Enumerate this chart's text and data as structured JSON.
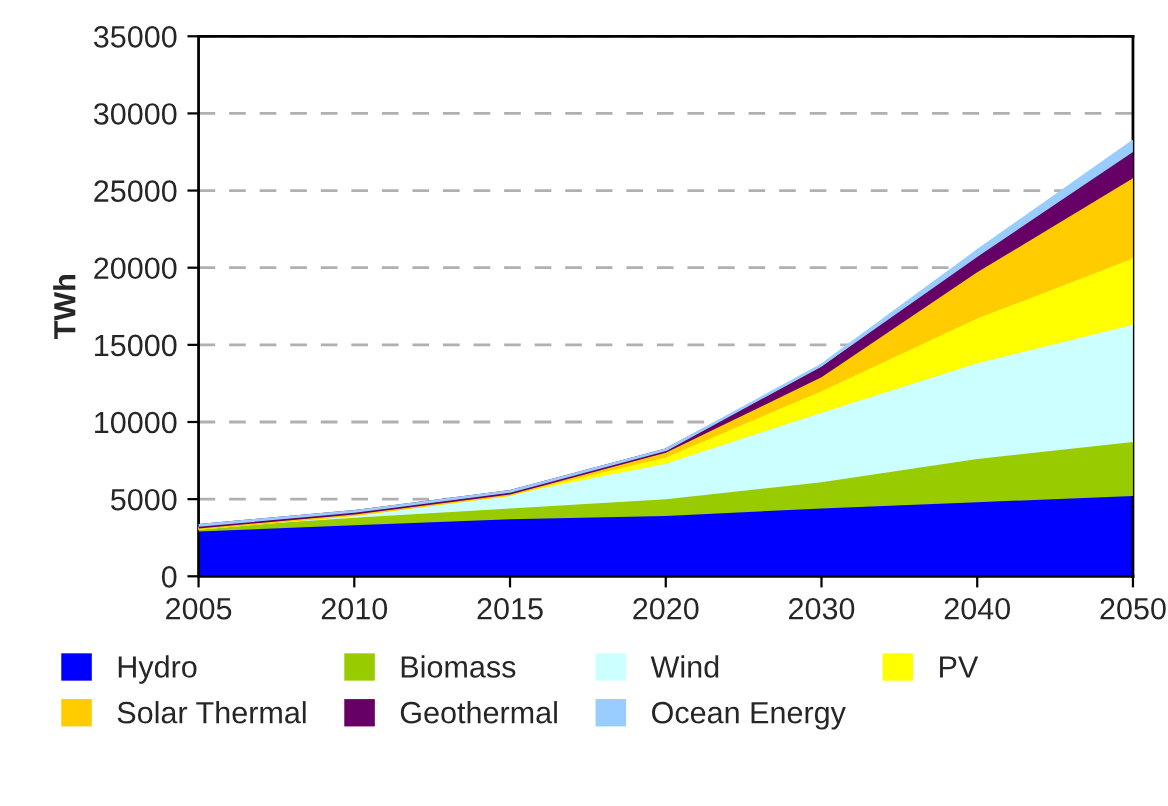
{
  "chart_data": {
    "type": "area",
    "stacked": true,
    "ylabel": "TWh",
    "categories": [
      "2005",
      "2010",
      "2015",
      "2020",
      "2030",
      "2040",
      "2050"
    ],
    "series": [
      {
        "name": "Hydro",
        "color": "#0000ff",
        "values": [
          2900,
          3300,
          3700,
          3900,
          4400,
          4800,
          5200
        ]
      },
      {
        "name": "Biomass",
        "color": "#99cc00",
        "values": [
          200,
          500,
          700,
          1100,
          1700,
          2800,
          3500
        ]
      },
      {
        "name": "Wind",
        "color": "#ccffff",
        "values": [
          0,
          200,
          900,
          2300,
          4500,
          6200,
          7600
        ]
      },
      {
        "name": "PV",
        "color": "#ffff00",
        "values": [
          0,
          0,
          0,
          400,
          1400,
          2900,
          4300
        ]
      },
      {
        "name": "Solar Thermal",
        "color": "#ffcc00",
        "values": [
          0,
          0,
          0,
          300,
          900,
          3000,
          5200
        ]
      },
      {
        "name": "Geothermal",
        "color": "#660066",
        "values": [
          200,
          200,
          200,
          200,
          700,
          1000,
          1700
        ]
      },
      {
        "name": "Ocean Energy",
        "color": "#99ccff",
        "values": [
          0,
          0,
          0,
          0,
          100,
          400,
          700
        ]
      }
    ],
    "ylim": [
      0,
      35000
    ],
    "yticks": [
      0,
      5000,
      10000,
      15000,
      20000,
      25000,
      30000,
      35000
    ],
    "grid": "y",
    "legend": "bottom"
  }
}
